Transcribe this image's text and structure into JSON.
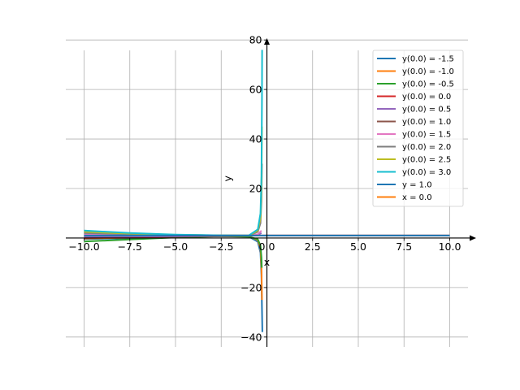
{
  "chart_data": {
    "type": "line",
    "xlabel": "x",
    "ylabel": "y",
    "xlim": [
      -11.0,
      11.0
    ],
    "ylim": [
      -44.0,
      84.0
    ],
    "xticks": [
      -10.0,
      -7.5,
      -5.0,
      -2.5,
      0.0,
      2.5,
      5.0,
      7.5,
      10.0
    ],
    "xtick_labels": [
      "−10.0",
      "−7.5",
      "−5.0",
      "−2.5",
      "0.0",
      "2.5",
      "5.0",
      "7.5",
      "10.0"
    ],
    "yticks": [
      -40,
      -20,
      20,
      40,
      60,
      80
    ],
    "ytick_labels": [
      "−40",
      "−20",
      "20",
      "40",
      "60",
      "80"
    ],
    "grid": true,
    "legend_position": "top-right",
    "series": [
      {
        "name": "y(0.0) = -1.5",
        "color": "#1f77b4",
        "x": [
          -10,
          -7.5,
          -5,
          -2.5,
          -1,
          -0.5,
          -0.35,
          -0.3,
          -0.27,
          -0.25
        ],
        "y": [
          -0.4,
          -0.1,
          0.5,
          0.75,
          0.6,
          -1.5,
          -6,
          -15,
          -28,
          -38
        ]
      },
      {
        "name": "y(0.0) = -1.0",
        "color": "#ff7f0e",
        "x": [
          -10,
          -7.5,
          -5,
          -2.5,
          -1,
          -0.5,
          -0.35,
          -0.3,
          -0.27
        ],
        "y": [
          -0.2,
          0.1,
          0.55,
          0.8,
          0.7,
          -0.8,
          -4,
          -12,
          -25
        ]
      },
      {
        "name": "y(0.0) = -0.5",
        "color": "#2ca02c",
        "x": [
          -10,
          -7.5,
          -5,
          -2.5,
          -1,
          -0.5,
          -0.35,
          -0.3,
          -0.28
        ],
        "y": [
          -1.4,
          -0.6,
          0.2,
          0.7,
          0.5,
          -0.5,
          -3,
          -8,
          -12
        ]
      },
      {
        "name": "y(0.0) = 0.0",
        "color": "#d62728",
        "x": [
          -10,
          -7.5,
          -5,
          -2.5,
          0,
          2.5,
          5,
          7.5,
          10
        ],
        "y": [
          0.0,
          0.3,
          0.6,
          0.8,
          1.0,
          1.0,
          1.0,
          1.0,
          1.0
        ]
      },
      {
        "name": "y(0.0) = 0.5",
        "color": "#9467bd",
        "x": [
          -10,
          -7.5,
          -5,
          -2.5,
          -1,
          -0.5,
          -0.3
        ],
        "y": [
          0.5,
          0.6,
          0.75,
          0.9,
          1.0,
          1.2,
          2.0
        ]
      },
      {
        "name": "y(0.0) = 1.0",
        "color": "#8c564b",
        "x": [
          -10,
          -7.5,
          -5,
          -2.5,
          0,
          2.5,
          5,
          7.5,
          10
        ],
        "y": [
          1.0,
          1.0,
          1.0,
          1.0,
          1.0,
          1.0,
          1.0,
          1.0,
          1.0
        ]
      },
      {
        "name": "y(0.0) = 1.5",
        "color": "#e377c2",
        "x": [
          -10,
          -7.5,
          -5,
          -2.5,
          -1,
          -0.5,
          -0.3
        ],
        "y": [
          1.5,
          1.4,
          1.25,
          1.1,
          1.0,
          1.5,
          3.0
        ]
      },
      {
        "name": "y(0.0) = 2.0",
        "color": "#7f7f7f",
        "x": [
          -10,
          -7.5,
          -5,
          -2.5,
          -1,
          -0.5,
          -0.35,
          -0.3,
          -0.27
        ],
        "y": [
          2.0,
          1.6,
          1.25,
          1.05,
          1.0,
          2.5,
          6,
          15,
          30
        ]
      },
      {
        "name": "y(0.0) = 2.5",
        "color": "#bcbd22",
        "x": [
          -10,
          -7.5,
          -5,
          -2.5,
          -1,
          -0.5,
          -0.35,
          -0.3,
          -0.27
        ],
        "y": [
          2.5,
          1.8,
          1.3,
          1.05,
          1.0,
          3.0,
          8,
          20,
          45
        ]
      },
      {
        "name": "y(0.0) = 3.0",
        "color": "#17becf",
        "x": [
          -10,
          -7.5,
          -5,
          -2.5,
          -1,
          -0.5,
          -0.35,
          -0.3,
          -0.27,
          -0.26
        ],
        "y": [
          3.0,
          2.0,
          1.35,
          1.05,
          1.0,
          3.5,
          10,
          25,
          55,
          76
        ]
      },
      {
        "name": "y = 1.0",
        "color": "#1f77b4",
        "x": [
          -10,
          10
        ],
        "y": [
          1.0,
          1.0
        ]
      },
      {
        "name": "x = 0.0",
        "color": "#ff7f0e",
        "x": [
          0.0,
          0.0
        ],
        "y": [
          0.0,
          0.0
        ]
      }
    ]
  }
}
